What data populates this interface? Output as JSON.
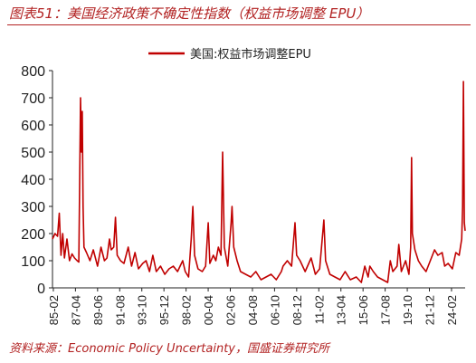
{
  "header": {
    "title": "图表51：美国经济政策不确定性指数（权益市场调整 EPU）"
  },
  "footer": {
    "source": "资料来源：Economic Policy Uncertainty，国盛证券研究所"
  },
  "colors": {
    "accent": "#b22222",
    "series": "#c00000"
  },
  "chart_data": {
    "type": "line",
    "title": "",
    "xlabel": "",
    "ylabel": "",
    "ylim": [
      0,
      800
    ],
    "yticks": [
      0,
      100,
      200,
      300,
      400,
      500,
      600,
      700,
      800
    ],
    "xticks": [
      "85-02",
      "87-04",
      "89-06",
      "91-08",
      "93-10",
      "95-12",
      "98-02",
      "00-04",
      "02-06",
      "04-08",
      "06-10",
      "08-12",
      "11-02",
      "13-04",
      "15-06",
      "17-08",
      "19-10",
      "21-12",
      "24-02"
    ],
    "x_start": "1985-01",
    "x_end": "2025-06",
    "legend_position": "top-center",
    "grid": false,
    "series": [
      {
        "name": "美国:权益市场调整EPU",
        "points": [
          [
            "1985-01",
            180
          ],
          [
            "1985-04",
            200
          ],
          [
            "1985-07",
            190
          ],
          [
            "1985-09",
            275
          ],
          [
            "1985-11",
            120
          ],
          [
            "1986-01",
            200
          ],
          [
            "1986-03",
            110
          ],
          [
            "1986-06",
            180
          ],
          [
            "1986-09",
            100
          ],
          [
            "1986-12",
            125
          ],
          [
            "1987-03",
            110
          ],
          [
            "1987-06",
            100
          ],
          [
            "1987-08",
            95
          ],
          [
            "1987-10",
            700
          ],
          [
            "1987-11",
            500
          ],
          [
            "1987-12",
            650
          ],
          [
            "1988-01",
            300
          ],
          [
            "1988-02",
            150
          ],
          [
            "1988-05",
            130
          ],
          [
            "1988-09",
            100
          ],
          [
            "1989-01",
            140
          ],
          [
            "1989-06",
            80
          ],
          [
            "1989-10",
            150
          ],
          [
            "1990-02",
            100
          ],
          [
            "1990-05",
            110
          ],
          [
            "1990-08",
            180
          ],
          [
            "1990-10",
            140
          ],
          [
            "1991-01",
            150
          ],
          [
            "1991-03",
            260
          ],
          [
            "1991-05",
            120
          ],
          [
            "1991-09",
            100
          ],
          [
            "1992-01",
            90
          ],
          [
            "1992-06",
            150
          ],
          [
            "1992-10",
            80
          ],
          [
            "1993-02",
            130
          ],
          [
            "1993-06",
            70
          ],
          [
            "1993-11",
            90
          ],
          [
            "1994-03",
            100
          ],
          [
            "1994-07",
            60
          ],
          [
            "1994-11",
            120
          ],
          [
            "1995-03",
            60
          ],
          [
            "1995-08",
            80
          ],
          [
            "1996-01",
            50
          ],
          [
            "1996-06",
            70
          ],
          [
            "1996-11",
            80
          ],
          [
            "1997-04",
            60
          ],
          [
            "1997-10",
            100
          ],
          [
            "1998-01",
            60
          ],
          [
            "1998-05",
            40
          ],
          [
            "1998-08",
            180
          ],
          [
            "1998-10",
            300
          ],
          [
            "1998-12",
            120
          ],
          [
            "1999-04",
            70
          ],
          [
            "1999-09",
            60
          ],
          [
            "2000-01",
            80
          ],
          [
            "2000-04",
            240
          ],
          [
            "2000-06",
            90
          ],
          [
            "2000-10",
            120
          ],
          [
            "2001-01",
            100
          ],
          [
            "2001-04",
            150
          ],
          [
            "2001-07",
            120
          ],
          [
            "2001-09",
            500
          ],
          [
            "2001-11",
            150
          ],
          [
            "2002-03",
            80
          ],
          [
            "2002-07",
            240
          ],
          [
            "2002-08",
            300
          ],
          [
            "2002-10",
            150
          ],
          [
            "2003-02",
            100
          ],
          [
            "2003-06",
            60
          ],
          [
            "2003-12",
            50
          ],
          [
            "2004-06",
            40
          ],
          [
            "2004-12",
            60
          ],
          [
            "2005-06",
            30
          ],
          [
            "2005-12",
            40
          ],
          [
            "2006-06",
            50
          ],
          [
            "2006-12",
            30
          ],
          [
            "2007-06",
            60
          ],
          [
            "2007-08",
            80
          ],
          [
            "2008-01",
            100
          ],
          [
            "2008-06",
            80
          ],
          [
            "2008-10",
            240
          ],
          [
            "2008-12",
            120
          ],
          [
            "2009-04",
            100
          ],
          [
            "2009-10",
            60
          ],
          [
            "2010-05",
            110
          ],
          [
            "2010-10",
            50
          ],
          [
            "2011-03",
            70
          ],
          [
            "2011-08",
            250
          ],
          [
            "2011-10",
            100
          ],
          [
            "2012-03",
            50
          ],
          [
            "2012-09",
            40
          ],
          [
            "2013-03",
            30
          ],
          [
            "2013-09",
            60
          ],
          [
            "2014-03",
            30
          ],
          [
            "2014-10",
            40
          ],
          [
            "2015-04",
            20
          ],
          [
            "2015-08",
            80
          ],
          [
            "2015-12",
            40
          ],
          [
            "2016-02",
            80
          ],
          [
            "2016-06",
            60
          ],
          [
            "2016-11",
            40
          ],
          [
            "2017-05",
            30
          ],
          [
            "2017-11",
            20
          ],
          [
            "2018-02",
            100
          ],
          [
            "2018-05",
            60
          ],
          [
            "2018-10",
            80
          ],
          [
            "2018-12",
            160
          ],
          [
            "2019-03",
            60
          ],
          [
            "2019-08",
            100
          ],
          [
            "2019-12",
            50
          ],
          [
            "2020-02",
            150
          ],
          [
            "2020-03",
            480
          ],
          [
            "2020-04",
            200
          ],
          [
            "2020-07",
            140
          ],
          [
            "2020-11",
            100
          ],
          [
            "2021-03",
            80
          ],
          [
            "2021-08",
            60
          ],
          [
            "2022-01",
            100
          ],
          [
            "2022-06",
            140
          ],
          [
            "2022-10",
            120
          ],
          [
            "2023-03",
            130
          ],
          [
            "2023-06",
            80
          ],
          [
            "2023-10",
            90
          ],
          [
            "2024-03",
            70
          ],
          [
            "2024-07",
            130
          ],
          [
            "2024-11",
            120
          ],
          [
            "2025-02",
            180
          ],
          [
            "2025-03",
            300
          ],
          [
            "2025-04",
            760
          ],
          [
            "2025-05",
            240
          ],
          [
            "2025-06",
            210
          ]
        ]
      }
    ]
  }
}
